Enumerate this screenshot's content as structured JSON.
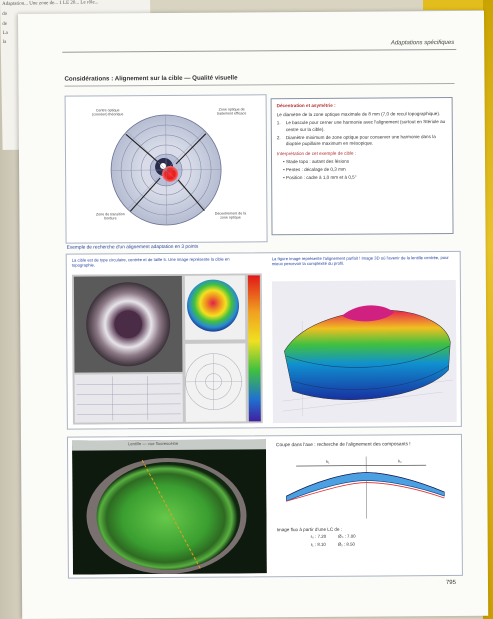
{
  "under_page": {
    "line1": "Adaptation... Une zone de... 1 LE 20... Le rôle...",
    "line2": "do",
    "line3": "de",
    "line4": "La",
    "line5": "la"
  },
  "page": {
    "running_head": "Adaptations spécifiques",
    "section_title": "Considérations : Alignement sur la cible — Qualité visuelle",
    "page_number": "795"
  },
  "topo_figure": {
    "ann_top_left": "Centre optique (cornéen) théorique",
    "ann_top_right": "Zone optique de traitement efficace",
    "ann_bottom_left": "Zone de transition bordure",
    "ann_bottom_right": "Décentrement de la zone optique"
  },
  "box_top": {
    "title": "Décentration et asymétrie :",
    "intro": "Le diamètre de la zone optique maximale de 8 mm (7,0 de recul topographique).",
    "items": [
      "Le bascule pour cerner une harmonie avec l'alignement (surtout en Stériole au centre sur la cible).",
      "Diamètre minimum de zone optique pour conserver une harmonie dans la dioptrie pupillaire maximum en mésopique."
    ],
    "sub": "Interprétation de cet exemple de cible :",
    "bullets": [
      "Stade topo : autant des lésions",
      "Pentes : décalage de 0,3 mm",
      "Position : cadre à 1,0 mm et à 0,5°"
    ]
  },
  "mid": {
    "title": "Exemple de recherche d'un alignement adaptation en 3 points",
    "cap_left": "La cible est de type circulaire, centrée et de taille 5. Une image représente la cible en topographie.",
    "cap_right": "La figure image représente l'alignement parfait ! Image 3D où l'avenir de la lentille centrée, pour mieux percevoir la complexité du profil."
  },
  "bottom": {
    "photo_caption": "Lentille — vue fluorescéine",
    "box_text": "Coupe dans l'axe : recherche de l'alignement des composants !",
    "label_k1": "k₁",
    "label_k2": "k₂",
    "prof_text": "Image fluo à partir d'une LC de :",
    "values": [
      {
        "l": "r₀ : 7.20",
        "r": "Ø₀ : 7.00"
      },
      {
        "l": "r₁ : 8.10",
        "r": "Ø₁ : 8.50"
      }
    ]
  },
  "colors": {
    "caption_blue": "#2a47a3",
    "title_red": "#b03030",
    "paper": "#fbfbf8"
  }
}
